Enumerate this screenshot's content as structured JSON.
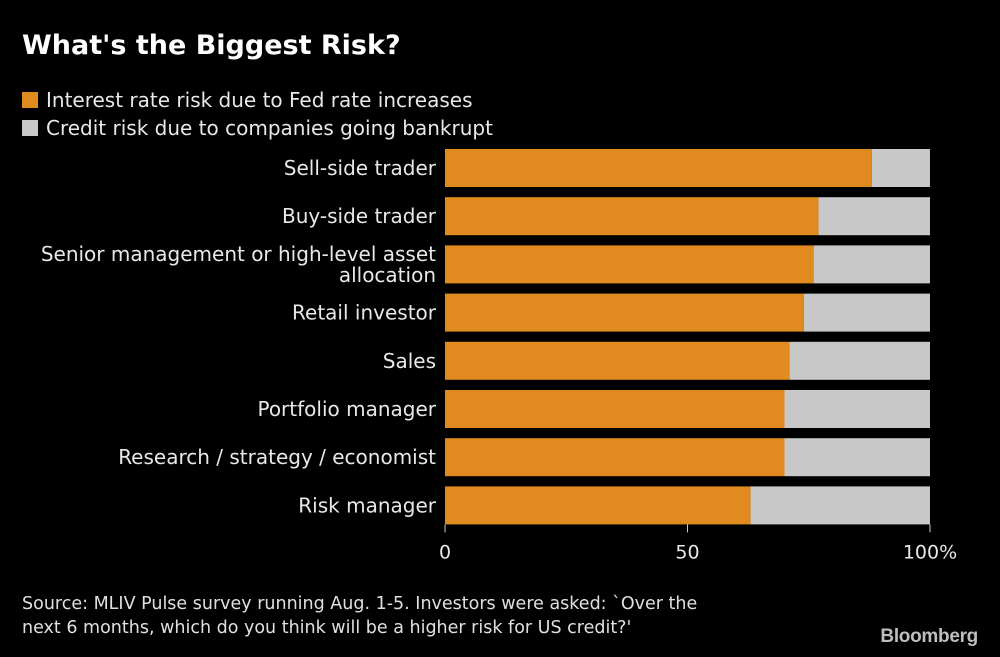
{
  "title": "What's the Biggest Risk?",
  "legend": [
    {
      "label": "Interest rate risk due to Fed rate increases",
      "color": "#e08a1f"
    },
    {
      "label": "Credit risk due to companies going bankrupt",
      "color": "#c8c8c8"
    }
  ],
  "chart_data": {
    "type": "bar",
    "orientation": "horizontal",
    "stacked": true,
    "categories": [
      [
        "Sell-side trader"
      ],
      [
        "Buy-side trader"
      ],
      [
        "Senior management or high-level asset",
        "allocation"
      ],
      [
        "Retail investor"
      ],
      [
        "Sales"
      ],
      [
        "Portfolio manager"
      ],
      [
        "Research / strategy / economist"
      ],
      [
        "Risk manager"
      ]
    ],
    "series": [
      {
        "name": "Interest rate risk due to Fed rate increases",
        "color": "#e08a1f",
        "values": [
          88,
          77,
          76,
          74,
          71,
          70,
          70,
          63
        ]
      },
      {
        "name": "Credit risk due to companies going bankrupt",
        "color": "#c8c8c8",
        "values": [
          12,
          23,
          24,
          26,
          29,
          30,
          30,
          37
        ]
      }
    ],
    "xlim": [
      0,
      100
    ],
    "xticks": [
      0,
      50,
      100
    ],
    "xtick_labels": [
      "0",
      "50",
      "100%"
    ],
    "grid": false,
    "legend_position": "top-left"
  },
  "source": [
    "Source: MLIV Pulse survey running Aug. 1-5. Investors were asked: `Over the",
    "next 6 months, which do you think will be a higher risk for US credit?'"
  ],
  "brand": "Bloomberg"
}
